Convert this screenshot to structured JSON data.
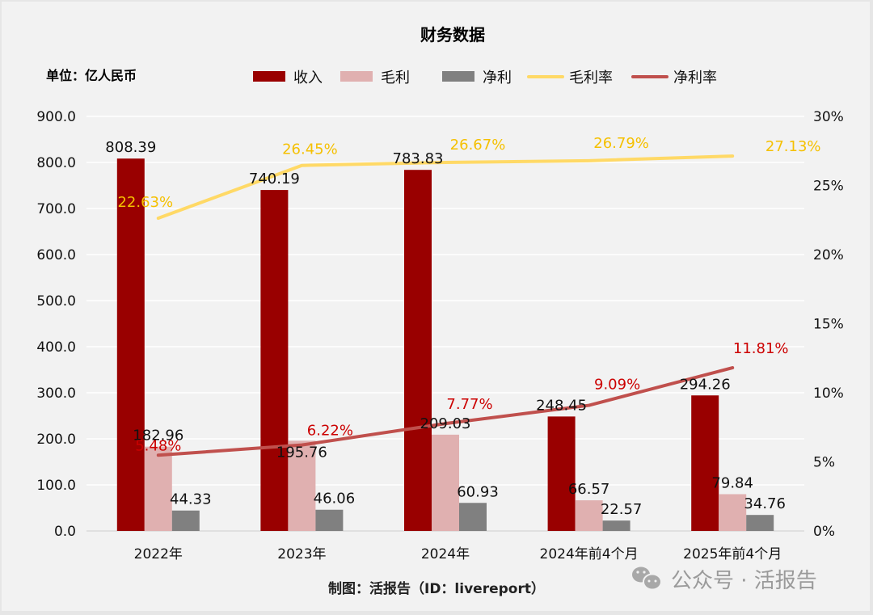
{
  "chart_data": {
    "type": "bar",
    "title": "财务数据",
    "unit_label": "单位：亿人民币",
    "categories": [
      "2022年",
      "2023年",
      "2024年",
      "2024年前4个月",
      "2025年前4个月"
    ],
    "bar_series": [
      {
        "name": "收入",
        "color": "#990000",
        "values": [
          808.39,
          740.19,
          783.83,
          248.45,
          294.26
        ]
      },
      {
        "name": "毛利",
        "color": "#e0b0b0",
        "values": [
          182.96,
          195.76,
          209.03,
          66.57,
          79.84
        ]
      },
      {
        "name": "净利",
        "color": "#808080",
        "values": [
          44.33,
          46.06,
          60.93,
          22.57,
          34.76
        ]
      }
    ],
    "line_series": [
      {
        "name": "毛利率",
        "color": "#ffd966",
        "label_color": "#f5c000",
        "axis": "right",
        "values": [
          22.63,
          26.45,
          26.67,
          26.79,
          27.13
        ],
        "labels": [
          "22.63%",
          "26.45%",
          "26.67%",
          "26.79%",
          "27.13%"
        ]
      },
      {
        "name": "净利率",
        "color": "#c0504d",
        "label_color": "#cc0000",
        "axis": "right",
        "values": [
          5.48,
          6.22,
          7.77,
          9.09,
          11.81
        ],
        "labels": [
          "5.48%",
          "6.22%",
          "7.77%",
          "9.09%",
          "11.81%"
        ]
      }
    ],
    "left_axis": {
      "ylim": [
        0,
        900
      ],
      "ticks": [
        "0.0",
        "100.0",
        "200.0",
        "300.0",
        "400.0",
        "500.0",
        "600.0",
        "700.0",
        "800.0",
        "900.0"
      ]
    },
    "right_axis": {
      "ylim": [
        0,
        30
      ],
      "ticks": [
        "0%",
        "5%",
        "10%",
        "15%",
        "20%",
        "25%",
        "30%"
      ]
    },
    "grid": true,
    "legend_position": "top"
  },
  "footer": {
    "credit": "制图：活报告（ID：livereport）",
    "watermark": "公众号 · 活报告"
  }
}
